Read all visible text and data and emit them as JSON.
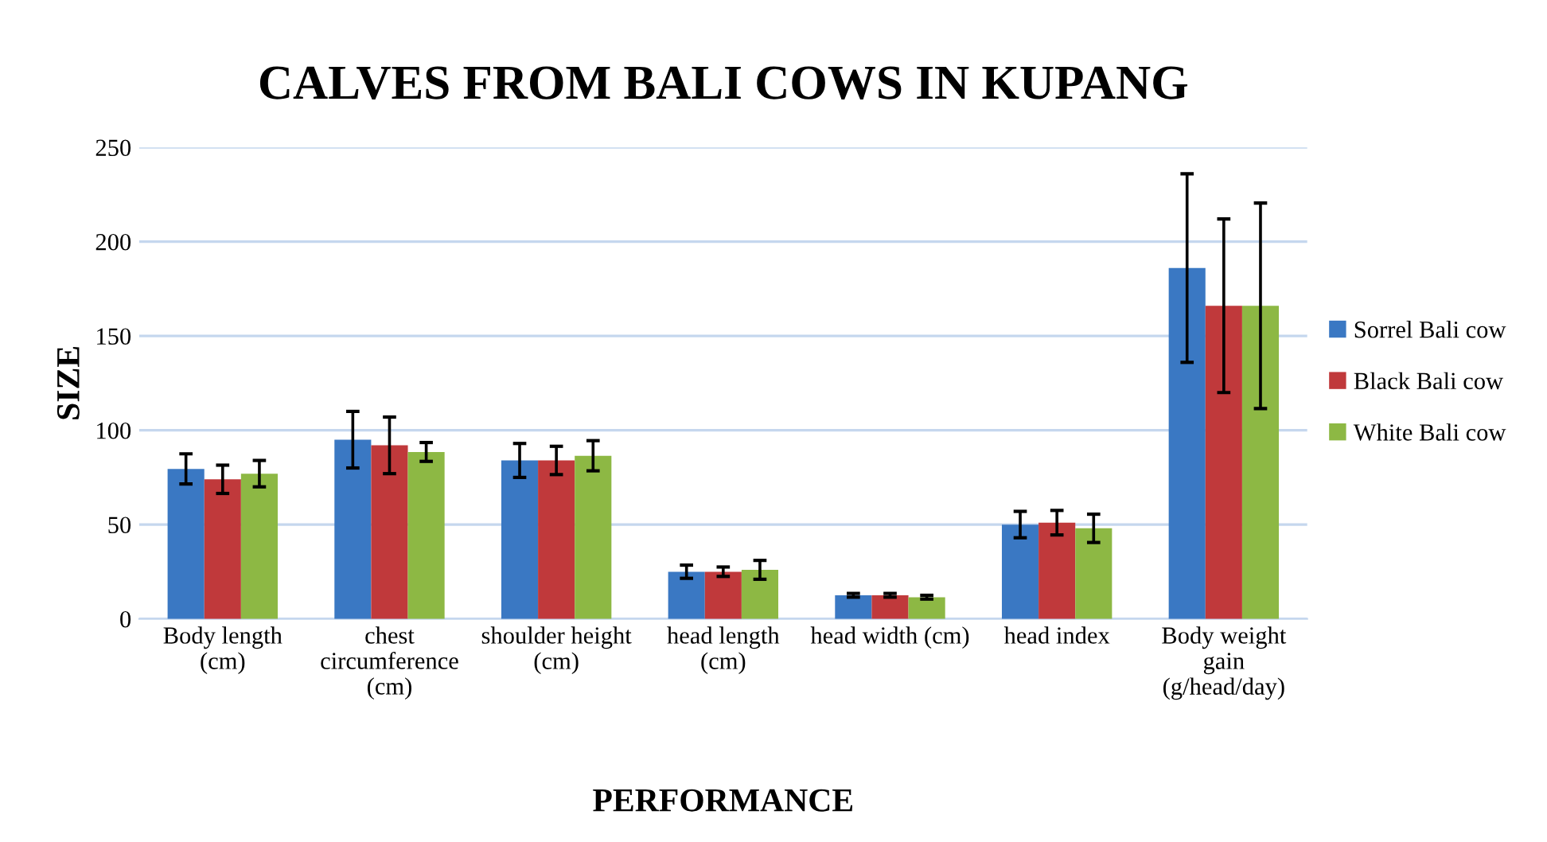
{
  "chart_data": {
    "type": "bar",
    "title": "CALVES FROM BALI COWS IN KUPANG",
    "xlabel": "PERFORMANCE",
    "ylabel": "SIZE",
    "categories": [
      "Body length\n(cm)",
      "chest\ncircumference\n(cm)",
      "shoulder height\n(cm)",
      "head length\n(cm)",
      "head width (cm)",
      "head index",
      "Body weight\ngain\n(g/head/day)"
    ],
    "series": [
      {
        "name": "Sorrel Bali cow",
        "color": "#3a78c3",
        "values": [
          79.5,
          95,
          84,
          25,
          12.5,
          50,
          186
        ],
        "errors": [
          8,
          15,
          9,
          3.5,
          1,
          7,
          50
        ]
      },
      {
        "name": "Black Bali cow",
        "color": "#c0393b",
        "values": [
          74,
          92,
          84,
          25,
          12.5,
          51,
          166
        ],
        "errors": [
          7.5,
          15,
          7.5,
          2.5,
          1,
          6.5,
          46
        ]
      },
      {
        "name": "White Bali cow",
        "color": "#8db844",
        "values": [
          77,
          88.5,
          86.5,
          26,
          11.5,
          48,
          166
        ],
        "errors": [
          7,
          5,
          8,
          5,
          1,
          7.5,
          54.5
        ]
      }
    ],
    "ylim": [
      0,
      250
    ],
    "yticks": [
      0,
      50,
      100,
      150,
      200,
      250
    ],
    "grid": "y",
    "legend": "right"
  }
}
